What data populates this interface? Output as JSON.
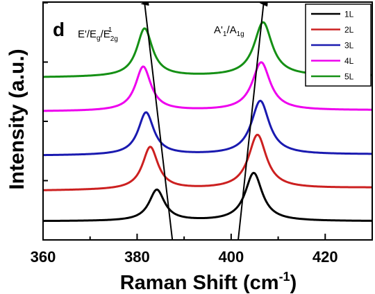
{
  "chart_data": {
    "type": "line",
    "panel_label": "d",
    "xlabel": "Raman Shift (cm",
    "xlabel_superscript": "-1",
    "xlabel_suffix": ")",
    "ylabel": "Intensity (a.u.)",
    "xlim": [
      360,
      430
    ],
    "x_ticks": [
      360,
      380,
      400,
      420
    ],
    "x_tick_labels": [
      "360",
      "380",
      "400",
      "420"
    ],
    "legend_position": "top-right",
    "annotations": {
      "peak_left": {
        "x": 382,
        "label_parts": [
          "E'/E",
          "g",
          "/E",
          "2g",
          "1"
        ]
      },
      "peak_right": {
        "x": 406,
        "label_parts": [
          "A'",
          "1",
          "/A",
          "1g"
        ]
      }
    },
    "series": [
      {
        "name": "1L",
        "color": "#000000",
        "offset": 0.0,
        "peaks": [
          [
            384.2,
            0.55,
            2.0
          ],
          [
            404.8,
            0.85,
            2.2
          ]
        ],
        "base": 0.03,
        "tail": 0.0
      },
      {
        "name": "2L",
        "color": "#cc2020",
        "offset": 0.55,
        "peaks": [
          [
            382.8,
            0.75,
            2.0
          ],
          [
            405.6,
            0.95,
            2.3
          ]
        ],
        "base": 0.02,
        "tail": 0.05
      },
      {
        "name": "3L",
        "color": "#1a1ab0",
        "offset": 1.15,
        "peaks": [
          [
            381.9,
            0.75,
            2.0
          ],
          [
            406.2,
            0.95,
            2.3
          ]
        ],
        "base": 0.04,
        "tail": 0.02
      },
      {
        "name": "4L",
        "color": "#ee00ee",
        "offset": 1.95,
        "peaks": [
          [
            381.3,
            0.78,
            2.0
          ],
          [
            406.4,
            0.85,
            2.3
          ]
        ],
        "base": 0.02,
        "tail": 0.02
      },
      {
        "name": "5L",
        "color": "#159015",
        "offset": 2.55,
        "peaks": [
          [
            381.6,
            0.85,
            2.0
          ],
          [
            406.8,
            0.95,
            2.3
          ]
        ],
        "base": 0.02,
        "tail": 0.03
      }
    ],
    "guide_lines": [
      {
        "from": [
          387.5,
          -0.3
        ],
        "to": [
          381.6,
          3.9
        ]
      },
      {
        "from": [
          401.5,
          -0.3
        ],
        "to": [
          406.9,
          3.9
        ]
      }
    ]
  }
}
